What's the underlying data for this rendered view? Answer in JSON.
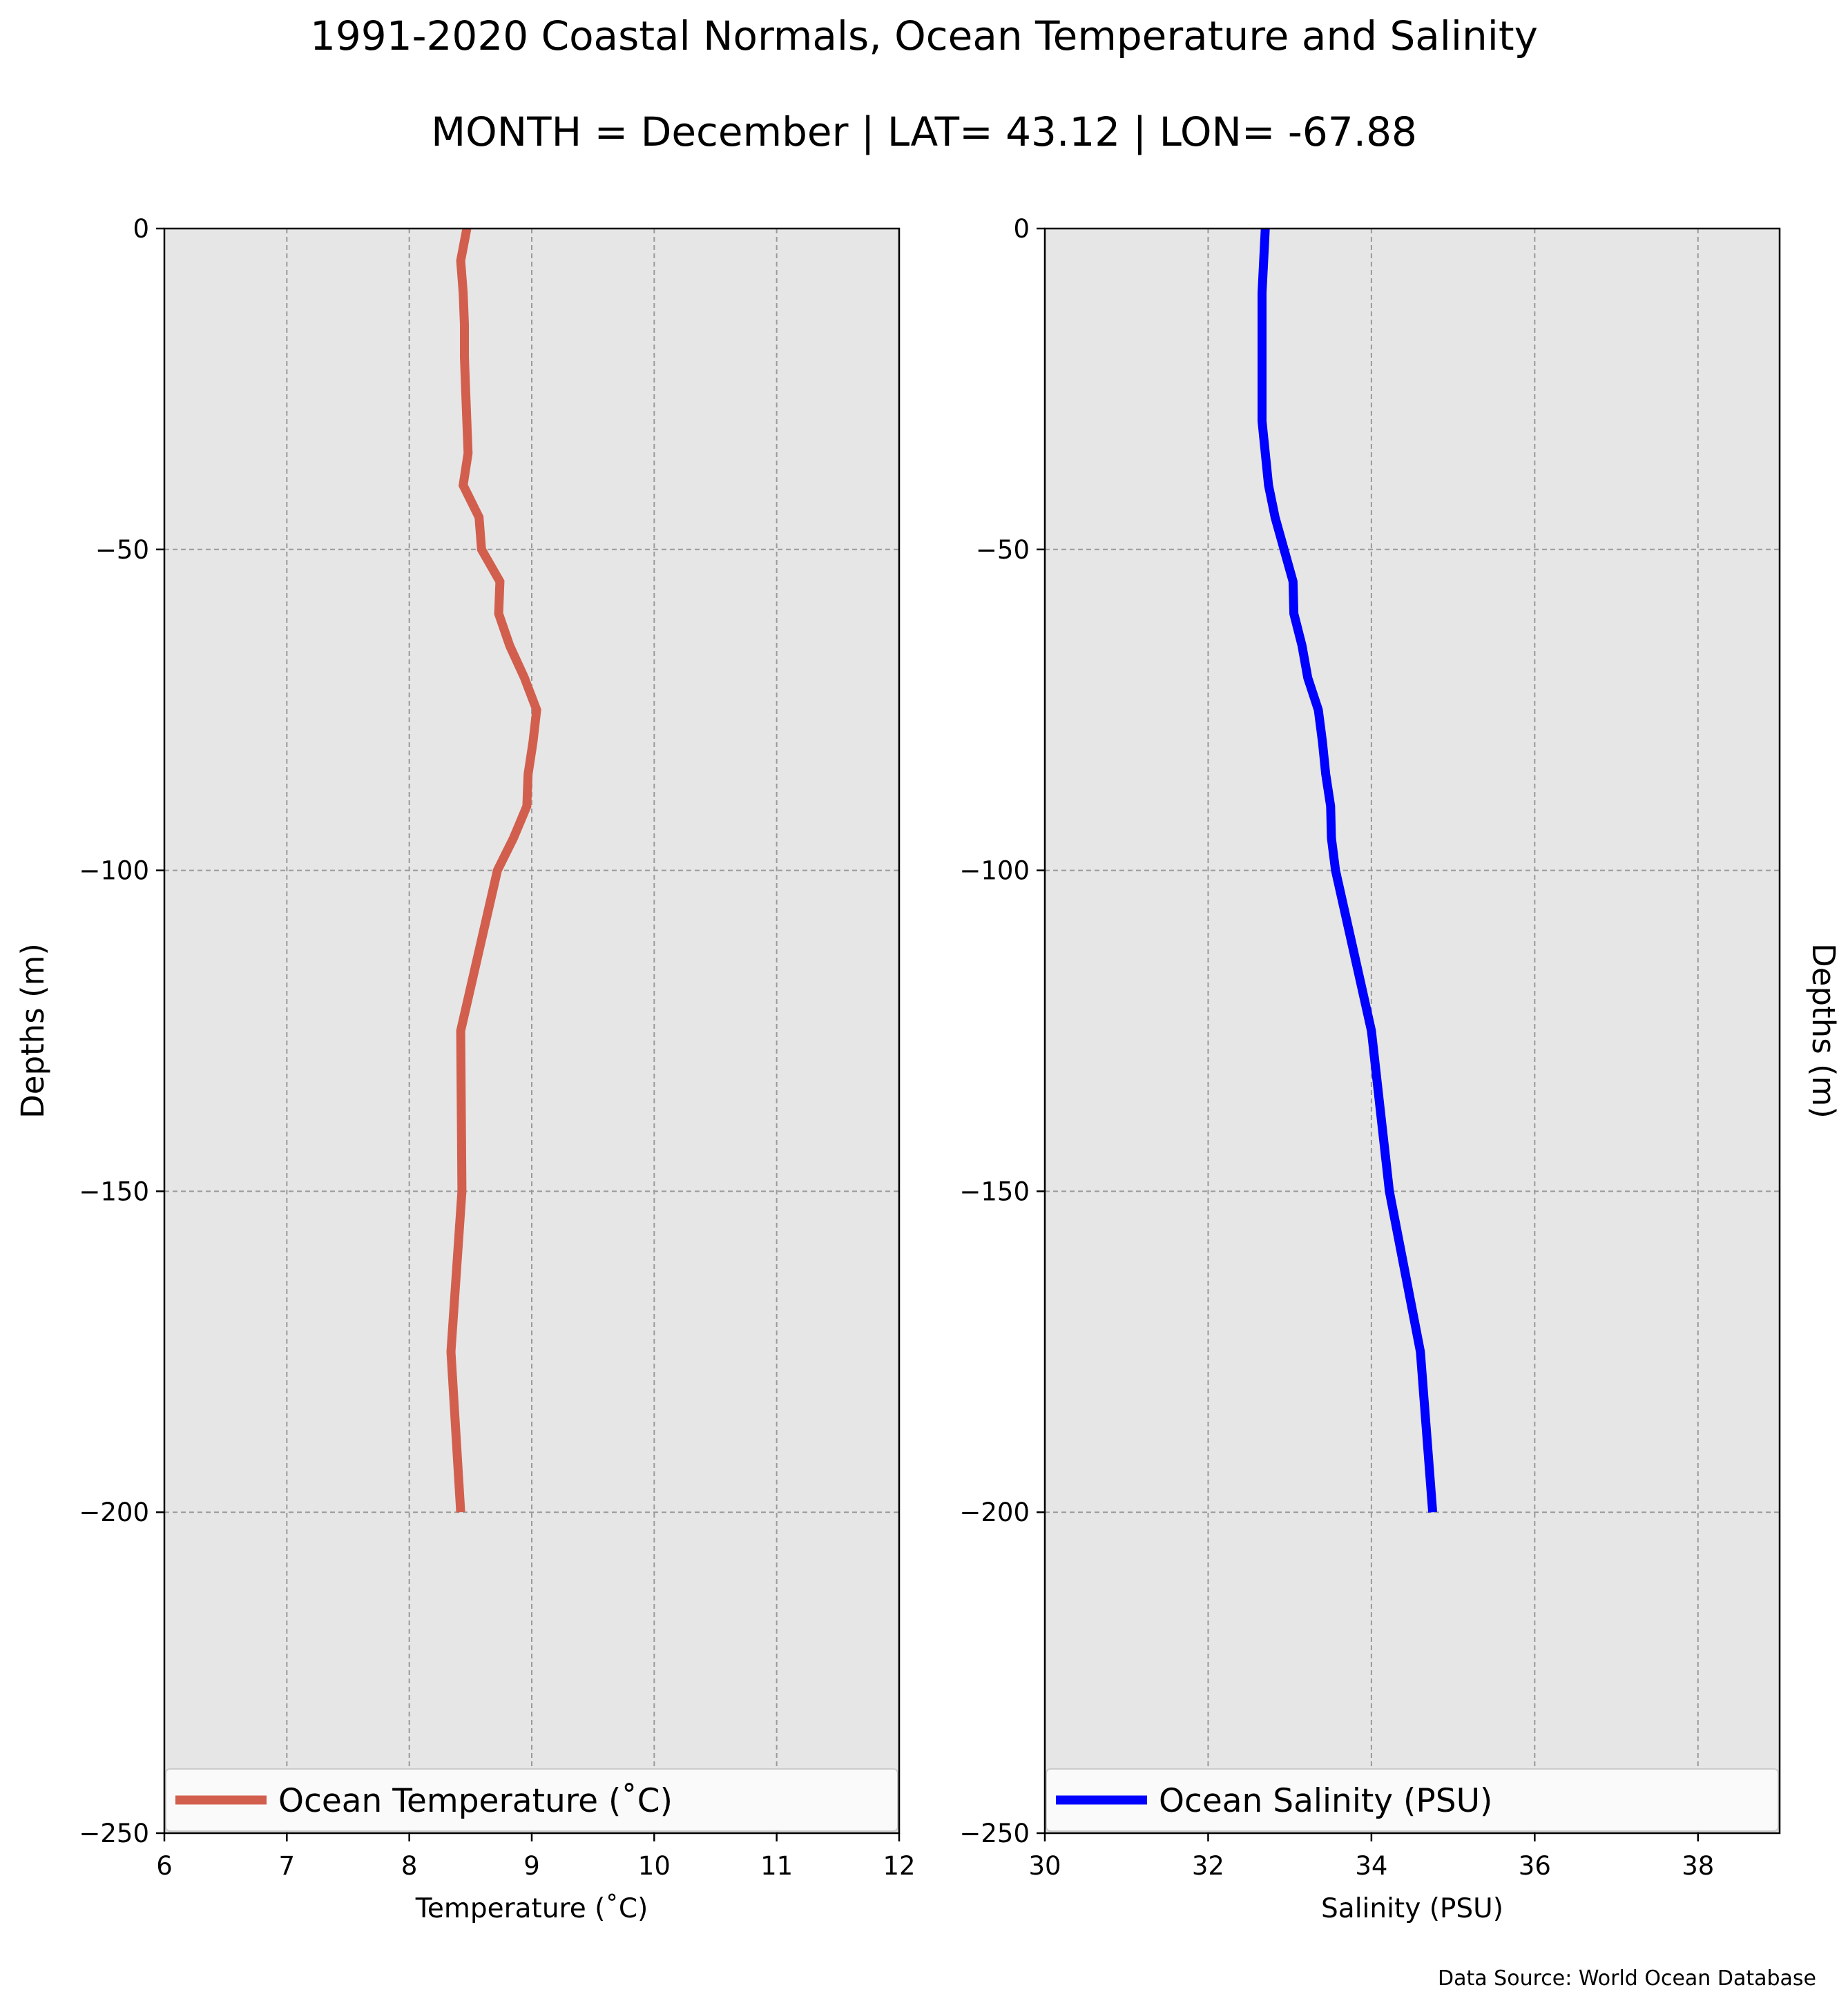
{
  "title": "1991-2020 Coastal Normals, Ocean Temperature and Salinity",
  "subtitle": "MONTH = December | LAT= 43.12 | LON= -67.88",
  "source_note": "Data Source: World Ocean Database",
  "colors": {
    "plot_background": "#e6e6e6",
    "grid": "#9a9a9a",
    "temperature_line": "#d25f4e",
    "salinity_line": "#0000ff",
    "axis": "#000000"
  },
  "chart_data": [
    {
      "type": "line",
      "xlabel": "Temperature ($^\\circ$C)",
      "xlabel_display": "Temperature (˚C)",
      "ylabel": "Depths (m)",
      "xlim": [
        6,
        12
      ],
      "ylim": [
        -250,
        0
      ],
      "xticks": [
        6,
        7,
        8,
        9,
        10,
        11,
        12
      ],
      "yticks": [
        0,
        -50,
        -100,
        -150,
        -200,
        -250
      ],
      "xtick_labels": [
        "6",
        "7",
        "8",
        "9",
        "10",
        "11",
        "12"
      ],
      "ytick_labels": [
        "0",
        "−50",
        "−100",
        "−150",
        "−200",
        "−250"
      ],
      "grid": true,
      "legend_position": "bottom",
      "series": [
        {
          "name": "Ocean Temperature (˚C)",
          "color": "#d25f4e",
          "points": [
            {
              "x": 8.47,
              "y": 0
            },
            {
              "x": 8.42,
              "y": -5
            },
            {
              "x": 8.44,
              "y": -10
            },
            {
              "x": 8.45,
              "y": -15
            },
            {
              "x": 8.45,
              "y": -20
            },
            {
              "x": 8.46,
              "y": -25
            },
            {
              "x": 8.47,
              "y": -30
            },
            {
              "x": 8.48,
              "y": -35
            },
            {
              "x": 8.44,
              "y": -40
            },
            {
              "x": 8.57,
              "y": -45
            },
            {
              "x": 8.59,
              "y": -50
            },
            {
              "x": 8.74,
              "y": -55
            },
            {
              "x": 8.73,
              "y": -60
            },
            {
              "x": 8.82,
              "y": -65
            },
            {
              "x": 8.94,
              "y": -70
            },
            {
              "x": 9.04,
              "y": -75
            },
            {
              "x": 9.01,
              "y": -80
            },
            {
              "x": 8.97,
              "y": -85
            },
            {
              "x": 8.96,
              "y": -90
            },
            {
              "x": 8.85,
              "y": -95
            },
            {
              "x": 8.72,
              "y": -100
            },
            {
              "x": 8.42,
              "y": -125
            },
            {
              "x": 8.43,
              "y": -150
            },
            {
              "x": 8.34,
              "y": -175
            },
            {
              "x": 8.42,
              "y": -200
            }
          ]
        }
      ]
    },
    {
      "type": "line",
      "xlabel": "Salinity (PSU)",
      "xlabel_display": "Salinity (PSU)",
      "ylabel": "Depths (m)",
      "xlim": [
        30,
        39
      ],
      "ylim": [
        -250,
        0
      ],
      "xticks": [
        30,
        32,
        34,
        36,
        38
      ],
      "yticks": [
        0,
        -50,
        -100,
        -150,
        -200,
        -250
      ],
      "xtick_labels": [
        "30",
        "32",
        "34",
        "36",
        "38"
      ],
      "ytick_labels": [
        "0",
        "−50",
        "−100",
        "−150",
        "−200",
        "−250"
      ],
      "grid": true,
      "legend_position": "bottom",
      "series": [
        {
          "name": "Ocean Salinity (PSU)",
          "color": "#0000ff",
          "points": [
            {
              "x": 32.7,
              "y": 0
            },
            {
              "x": 32.66,
              "y": -10
            },
            {
              "x": 32.66,
              "y": -20
            },
            {
              "x": 32.66,
              "y": -30
            },
            {
              "x": 32.74,
              "y": -40
            },
            {
              "x": 32.82,
              "y": -45
            },
            {
              "x": 32.93,
              "y": -50
            },
            {
              "x": 33.04,
              "y": -55
            },
            {
              "x": 33.05,
              "y": -60
            },
            {
              "x": 33.15,
              "y": -65
            },
            {
              "x": 33.22,
              "y": -70
            },
            {
              "x": 33.35,
              "y": -75
            },
            {
              "x": 33.4,
              "y": -80
            },
            {
              "x": 33.44,
              "y": -85
            },
            {
              "x": 33.5,
              "y": -90
            },
            {
              "x": 33.51,
              "y": -95
            },
            {
              "x": 33.56,
              "y": -100
            },
            {
              "x": 34.0,
              "y": -125
            },
            {
              "x": 34.22,
              "y": -150
            },
            {
              "x": 34.6,
              "y": -175
            },
            {
              "x": 34.75,
              "y": -200
            }
          ]
        }
      ]
    }
  ]
}
